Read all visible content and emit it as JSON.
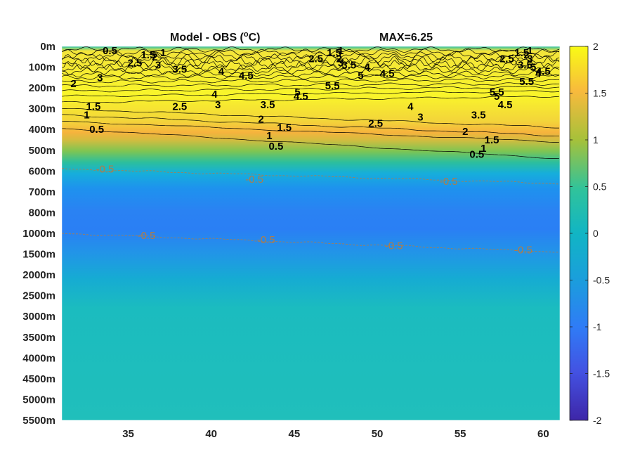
{
  "chart_data": {
    "type": "heatmap",
    "title": "Model - OBS (°C)",
    "title_text": "Model - OBS (",
    "title_sup": "o",
    "title_unit": "C)",
    "max_label": "MAX=6.25",
    "x_ticks": [
      35,
      40,
      45,
      50,
      55,
      60
    ],
    "x_tick_labels": [
      "35",
      "40",
      "45",
      "50",
      "55",
      "60"
    ],
    "xlim": [
      31,
      61
    ],
    "y_tick_labels": [
      "0m",
      "100m",
      "200m",
      "300m",
      "400m",
      "500m",
      "600m",
      "700m",
      "800m",
      "1000m",
      "1500m",
      "2000m",
      "2500m",
      "3000m",
      "3500m",
      "4000m",
      "4500m",
      "5000m",
      "5500m"
    ],
    "colorbar": {
      "range": [
        -2,
        2
      ],
      "ticks": [
        2,
        1.5,
        1,
        0.5,
        0,
        -0.5,
        -1,
        -1.5,
        -2
      ],
      "tick_labels": [
        "2",
        "1.5",
        "1",
        "0.5",
        "0",
        "-0.5",
        "-1",
        "-1.5",
        "-2"
      ],
      "colormap": "parula"
    },
    "contour_labels_positive": [
      {
        "text": "0.5",
        "x": 33.9,
        "y": 0.2
      },
      {
        "text": "1.5",
        "x": 36.2,
        "y": 0.4
      },
      {
        "text": "2",
        "x": 36.6,
        "y": 0.5
      },
      {
        "text": "1",
        "x": 37.1,
        "y": 0.3
      },
      {
        "text": "2.5",
        "x": 35.4,
        "y": 0.8
      },
      {
        "text": "3",
        "x": 36.8,
        "y": 0.9
      },
      {
        "text": "3.5",
        "x": 38.1,
        "y": 1.1
      },
      {
        "text": "3",
        "x": 33.3,
        "y": 1.5
      },
      {
        "text": "2",
        "x": 31.7,
        "y": 1.8
      },
      {
        "text": "4",
        "x": 40.6,
        "y": 1.2
      },
      {
        "text": "4.5",
        "x": 42.1,
        "y": 1.4
      },
      {
        "text": "4",
        "x": 40.2,
        "y": 2.3
      },
      {
        "text": "3",
        "x": 40.4,
        "y": 2.8
      },
      {
        "text": "2.5",
        "x": 38.1,
        "y": 2.9
      },
      {
        "text": "1.5",
        "x": 32.9,
        "y": 2.9
      },
      {
        "text": "1",
        "x": 32.5,
        "y": 3.3
      },
      {
        "text": "0.5",
        "x": 33.1,
        "y": 4.0
      },
      {
        "text": "3.5",
        "x": 43.4,
        "y": 2.8
      },
      {
        "text": "2",
        "x": 43.0,
        "y": 3.5
      },
      {
        "text": "1.5",
        "x": 44.4,
        "y": 3.9
      },
      {
        "text": "1",
        "x": 43.5,
        "y": 4.3
      },
      {
        "text": "0.5",
        "x": 43.9,
        "y": 4.8
      },
      {
        "text": "5",
        "x": 45.2,
        "y": 2.2
      },
      {
        "text": "4.5",
        "x": 45.4,
        "y": 2.4
      },
      {
        "text": "5.5",
        "x": 47.3,
        "y": 1.9
      },
      {
        "text": "2.5",
        "x": 46.3,
        "y": 0.6
      },
      {
        "text": "1.5",
        "x": 47.4,
        "y": 0.3
      },
      {
        "text": "1",
        "x": 47.8,
        "y": 0.2
      },
      {
        "text": "2",
        "x": 47.7,
        "y": 0.6
      },
      {
        "text": "3",
        "x": 47.8,
        "y": 0.8
      },
      {
        "text": "3.5",
        "x": 48.3,
        "y": 0.9
      },
      {
        "text": "4",
        "x": 49.4,
        "y": 1.0
      },
      {
        "text": "5",
        "x": 49.0,
        "y": 1.4
      },
      {
        "text": "4.5",
        "x": 50.6,
        "y": 1.3
      },
      {
        "text": "4",
        "x": 52.0,
        "y": 2.9
      },
      {
        "text": "3",
        "x": 52.6,
        "y": 3.4
      },
      {
        "text": "2.5",
        "x": 49.9,
        "y": 3.7
      },
      {
        "text": "3.5",
        "x": 56.1,
        "y": 3.3
      },
      {
        "text": "2",
        "x": 55.3,
        "y": 4.1
      },
      {
        "text": "1.5",
        "x": 56.9,
        "y": 4.5
      },
      {
        "text": "1",
        "x": 56.4,
        "y": 4.9
      },
      {
        "text": "0.5",
        "x": 56.0,
        "y": 5.2
      },
      {
        "text": "5.5",
        "x": 57.2,
        "y": 2.2
      },
      {
        "text": "5",
        "x": 57.2,
        "y": 2.4
      },
      {
        "text": "4.5",
        "x": 57.7,
        "y": 2.8
      },
      {
        "text": "2.5",
        "x": 57.8,
        "y": 0.6
      },
      {
        "text": "1.5",
        "x": 58.7,
        "y": 0.3
      },
      {
        "text": "1",
        "x": 59.2,
        "y": 0.2
      },
      {
        "text": "2",
        "x": 59.0,
        "y": 0.4
      },
      {
        "text": "3",
        "x": 59.2,
        "y": 0.6
      },
      {
        "text": "3.5",
        "x": 58.9,
        "y": 0.9
      },
      {
        "text": "5",
        "x": 59.4,
        "y": 1.0
      },
      {
        "text": "4",
        "x": 59.7,
        "y": 1.3
      },
      {
        "text": "4.5",
        "x": 60.0,
        "y": 1.2
      },
      {
        "text": "5.5",
        "x": 59.0,
        "y": 1.7
      }
    ],
    "contour_labels_negative": [
      {
        "text": "-0.5",
        "x": 33.6,
        "y": 5.9
      },
      {
        "text": "-0.5",
        "x": 42.6,
        "y": 6.4
      },
      {
        "text": "-0.5",
        "x": 54.3,
        "y": 6.5
      },
      {
        "text": "-0.5",
        "x": 36.1,
        "y": 9.1
      },
      {
        "text": "-0.5",
        "x": 43.3,
        "y": 9.3
      },
      {
        "text": "-0.5",
        "x": 51.0,
        "y": 9.6
      },
      {
        "text": "-0.5",
        "x": 58.8,
        "y": 9.8
      }
    ]
  }
}
